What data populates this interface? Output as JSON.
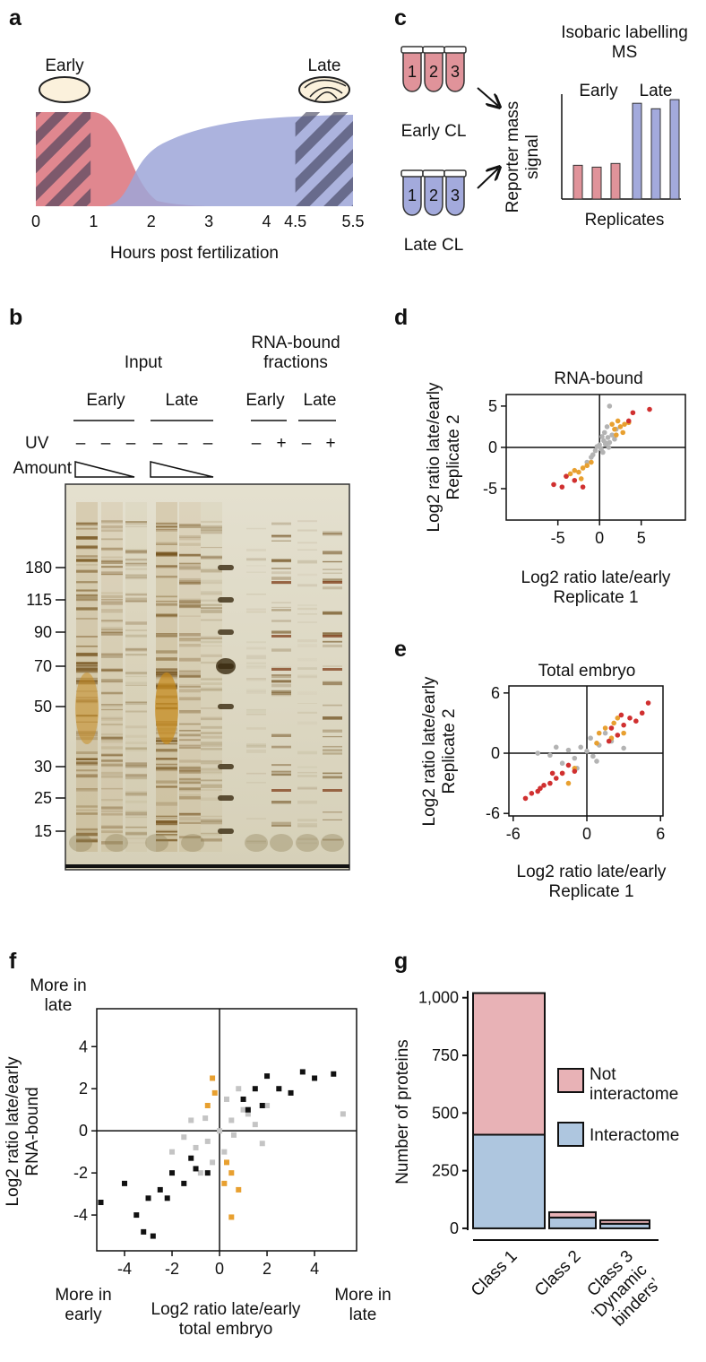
{
  "panels": [
    "a",
    "b",
    "c",
    "d",
    "e",
    "f",
    "g"
  ],
  "gel": {
    "input": "Input",
    "early_input": "Early",
    "late_input": "Late",
    "rna_bound": "RNA-bound\nfractions",
    "early_rna": "Early",
    "late_rna": "Late",
    "uv": "UV",
    "uv_signs": [
      "–",
      "–",
      "–",
      "–",
      "–",
      "–",
      "–",
      "+",
      "–",
      "+"
    ],
    "amount": "Amount",
    "markers": [
      180,
      115,
      90,
      70,
      50,
      30,
      25,
      15
    ]
  },
  "chart_data": [
    {
      "type": "schematic",
      "labels": [
        "Early",
        "Late"
      ],
      "xlabel": "Hours post fertilization",
      "xlim": [
        0,
        5.5
      ],
      "xticks": [
        0,
        1,
        2,
        3,
        4,
        4.5,
        5.5
      ],
      "colors": [
        "#e0878f",
        "#9ea6d8"
      ]
    },
    {
      "type": "bar",
      "title": "Isobaric labelling\nMS",
      "ylabel": "Reporter mass\nsignal",
      "xlabel": "Replicates",
      "ylim": [
        0,
        115
      ],
      "series": [
        {
          "name": "Early",
          "color": "#e0939a",
          "values": [
            37,
            35,
            39
          ]
        },
        {
          "name": "Late",
          "color": "#a3aadc",
          "values": [
            105,
            99,
            109
          ]
        }
      ],
      "tubes": [
        {
          "label": "Early CL",
          "numbers": [
            1,
            2,
            3
          ],
          "color": "#e0939a"
        },
        {
          "label": "Late CL",
          "numbers": [
            1,
            2,
            3
          ],
          "color": "#a3aadc"
        }
      ]
    },
    {
      "type": "scatter",
      "title": "RNA-bound",
      "xlabel": "Log2 ratio late/early\nReplicate 1",
      "ylabel": "Log2 ratio late/early\nReplicate 2",
      "xlim": [
        -11.2,
        10.3
      ],
      "ylim": [
        -8.8,
        6.4
      ],
      "xticks": [
        -5,
        0,
        5
      ],
      "yticks": [
        -5,
        0,
        5
      ],
      "marker": "circle",
      "series": [
        {
          "color": "#b3b3b3",
          "x": [
            0.5,
            1,
            -0.5,
            0,
            1.5,
            -1,
            0.8,
            2,
            0.2,
            -0.3,
            1.2,
            0.6,
            -1.5,
            1.8,
            0.4,
            0.9,
            -0.8,
            1.1,
            0.3,
            0.7,
            1.2
          ],
          "values": [
            0.8,
            1.2,
            -0.4,
            0.3,
            1.5,
            -1.2,
            0.5,
            2.2,
            -0.2,
            0.1,
            0.6,
            1.8,
            -1.8,
            1,
            -0.6,
            2.5,
            -0.9,
            0,
            1.3,
            0.4,
            5
          ]
        },
        {
          "color": "#e8a030",
          "x": [
            2.5,
            3,
            2,
            3.5,
            1.8,
            2.8,
            -2,
            -3,
            -1.5,
            -2.5,
            -3.5,
            -1,
            -2.2,
            1.5,
            2.2,
            -4
          ],
          "values": [
            2.5,
            2.8,
            1.5,
            3,
            2.2,
            1.8,
            -2.5,
            -2.8,
            -2.2,
            -3,
            -3.2,
            -1.8,
            -3.8,
            2.8,
            3.2,
            -3.5
          ]
        },
        {
          "color": "#d03030",
          "x": [
            6,
            3.5,
            4,
            -5.5,
            -4.5,
            -3,
            -4,
            -2
          ],
          "values": [
            4.6,
            3.2,
            4.2,
            -4.5,
            -4.8,
            -4,
            -3.5,
            -4.8
          ]
        }
      ]
    },
    {
      "type": "scatter",
      "title": "Total embryo",
      "xlabel": "Log2 ratio late/early\nReplicate 1",
      "ylabel": "Log2 ratio late/early\nReplicate 2",
      "xlim": [
        -6.35,
        6.2
      ],
      "ylim": [
        -6.25,
        6.7
      ],
      "xticks": [
        -6,
        0,
        6
      ],
      "yticks": [
        -6,
        0,
        6
      ],
      "marker": "circle",
      "series": [
        {
          "color": "#b3b3b3",
          "x": [
            0,
            1,
            -1,
            0.5,
            -0.5,
            2,
            -2,
            1.5,
            -1.5,
            0.3,
            -3,
            -4,
            3,
            -0.8,
            0.8,
            -2.5
          ],
          "values": [
            0.2,
            0.8,
            -0.5,
            -0.3,
            0.6,
            1.2,
            -1,
            2,
            0.3,
            1.5,
            -0.2,
            0,
            0.5,
            -1.5,
            -0.8,
            0.6
          ]
        },
        {
          "color": "#e8a030",
          "x": [
            1.5,
            2,
            2.5,
            1,
            3,
            -1,
            -1.5,
            -2,
            0.8,
            2.2
          ],
          "values": [
            2.5,
            1.5,
            3.5,
            2,
            2,
            -1.5,
            -3,
            -2,
            1,
            3
          ]
        },
        {
          "color": "#d03030",
          "x": [
            2,
            2.5,
            3,
            3.5,
            4,
            4.5,
            5,
            1.8,
            2.8,
            -1,
            -2,
            -2.5,
            -3,
            -3.5,
            -4,
            -4.5,
            -5,
            -1.5,
            -2.8,
            -3.8
          ],
          "values": [
            2.5,
            1.8,
            2.8,
            3.5,
            3.2,
            4,
            5,
            1.2,
            3.8,
            -1.8,
            -2,
            -2.5,
            -3,
            -3.2,
            -3.8,
            -4,
            -4.5,
            -1.2,
            -2,
            -3.5
          ]
        }
      ]
    },
    {
      "type": "scatter",
      "xlabel": "Log2 ratio late/early\ntotal embryo",
      "ylabel": "Log2 ratio late/early\nRNA-bound",
      "xlim": [
        -5.17,
        5.77
      ],
      "ylim": [
        -5.7,
        5.8
      ],
      "xticks": [
        -4,
        -2,
        0,
        2,
        4
      ],
      "yticks": [
        -4,
        -2,
        0,
        2,
        4
      ],
      "marker": "square",
      "annotations": [
        "More in\nlate",
        "More in\nearly",
        "More in\nlate"
      ],
      "series": [
        {
          "color": "#c4c4c4",
          "x": [
            0,
            0.5,
            -0.5,
            1,
            -1,
            0.3,
            -0.3,
            1.5,
            -1.5,
            0.8,
            -0.8,
            2,
            -2,
            0.2,
            1.2,
            -1.2,
            5.2,
            0.6,
            -0.6,
            1.8
          ],
          "values": [
            0,
            0.5,
            -0.5,
            1,
            -0.8,
            1.5,
            -1.5,
            0.3,
            -0.3,
            2,
            -2,
            1.2,
            -1,
            -1,
            0.8,
            0.5,
            0.8,
            -0.2,
            0.6,
            -0.6
          ]
        },
        {
          "color": "#e8a030",
          "x": [
            -0.3,
            -0.2,
            0.3,
            0.5,
            0.8,
            0.5,
            -0.5,
            0.2
          ],
          "values": [
            2.5,
            1.8,
            -1.5,
            -2,
            -2.8,
            -4.1,
            1.2,
            -2.5
          ]
        },
        {
          "color": "#111111",
          "x": [
            1,
            1.5,
            2,
            2.5,
            3,
            3.5,
            4,
            4.8,
            1.2,
            1.8,
            -1,
            -1.5,
            -2,
            -2.5,
            -3,
            -3.5,
            -4,
            -5,
            -2.8,
            -3.2,
            -0.5,
            -1.2,
            -2.2
          ],
          "values": [
            1.5,
            2,
            2.6,
            2,
            1.8,
            2.8,
            2.5,
            2.7,
            1,
            1.2,
            -1.8,
            -2.5,
            -2,
            -2.8,
            -3.2,
            -4,
            -2.5,
            -3.4,
            -5,
            -4.8,
            -2,
            -1.3,
            -3.2
          ]
        }
      ]
    },
    {
      "type": "stacked-bar",
      "ylabel": "Number of proteins",
      "categories": [
        "Class 1",
        "Class 2",
        "Class 3\n‘Dynamic\nbinders’"
      ],
      "ylim": [
        -8,
        1030
      ],
      "yticks": [
        0,
        250,
        500,
        750,
        {
          "value": 1000,
          "label": "1,000"
        }
      ],
      "series": [
        {
          "name": "Not\ninteractome",
          "color": "#e8b2b6",
          "values": [
            614,
            23,
            15
          ]
        },
        {
          "name": "Interactome",
          "color": "#aec6df",
          "values": [
            406,
            47,
            20
          ]
        }
      ]
    }
  ]
}
